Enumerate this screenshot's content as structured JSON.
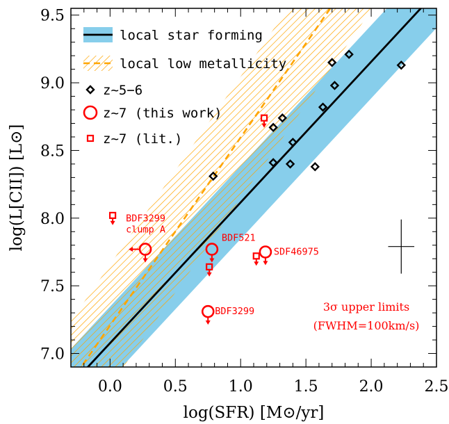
{
  "chart_data": {
    "type": "scatter",
    "xlabel": "log(SFR) [M⊙/yr]",
    "ylabel": "log(L[CII]) [L⊙]",
    "xlim": [
      -0.3,
      2.5
    ],
    "ylim": [
      6.9,
      9.55
    ],
    "xticks": [
      0.0,
      0.5,
      1.0,
      1.5,
      2.0,
      2.5
    ],
    "xtick_labels": [
      "0.0",
      "0.5",
      "1.0",
      "1.5",
      "2.0",
      "2.5"
    ],
    "yticks": [
      7.0,
      7.5,
      8.0,
      8.5,
      9.0,
      9.5
    ],
    "ytick_labels": [
      "7.0",
      "7.5",
      "8.0",
      "8.5",
      "9.0",
      "9.5"
    ],
    "grid": false,
    "legend_position": "top-left",
    "legend": [
      {
        "label": "local star forming",
        "marker": "band-line"
      },
      {
        "label": "local low metallicity",
        "marker": "hatch-dashed"
      },
      {
        "label": "z~5−6",
        "marker": "diamond"
      },
      {
        "label": "z~7 (this work)",
        "marker": "circle"
      },
      {
        "label": "z~7 (lit.)",
        "marker": "square"
      }
    ],
    "relations": {
      "local_star_forming": {
        "line": [
          [
            -0.3,
            6.765
          ],
          [
            2.5,
            9.675
          ]
        ],
        "band_halfwidth_y": 0.27,
        "color": "#87ceeb"
      },
      "local_low_metallicity": {
        "line": [
          [
            -0.3,
            6.79
          ],
          [
            2.5,
            10.68
          ]
        ],
        "band_halfwidth_y": 0.45,
        "color": "#ffa500"
      }
    },
    "series": [
      {
        "name": "z~5−6",
        "marker": "diamond",
        "color": "#000000",
        "points": [
          [
            0.79,
            8.31
          ],
          [
            1.25,
            8.67
          ],
          [
            1.32,
            8.74
          ],
          [
            1.25,
            8.41
          ],
          [
            1.38,
            8.4
          ],
          [
            1.4,
            8.56
          ],
          [
            1.63,
            8.82
          ],
          [
            1.57,
            8.38
          ],
          [
            1.7,
            9.15
          ],
          [
            1.72,
            8.98
          ],
          [
            1.83,
            9.21
          ],
          [
            2.23,
            9.13
          ]
        ]
      },
      {
        "name": "z~7 (this work)",
        "marker": "circle",
        "color": "#ff0000",
        "upper_limit": true,
        "points": [
          {
            "x": 0.27,
            "y": 7.77,
            "label": "BDF3299\nclump A",
            "sfr_upper": true
          },
          {
            "x": 0.78,
            "y": 7.77,
            "label": "BDF521"
          },
          {
            "x": 1.19,
            "y": 7.75,
            "label": "SDF46975"
          },
          {
            "x": 0.75,
            "y": 7.31,
            "label": "BDF3299"
          }
        ]
      },
      {
        "name": "z~7 (lit.)",
        "marker": "square",
        "color": "#ff0000",
        "upper_limit": true,
        "points": [
          [
            0.02,
            8.02
          ],
          [
            1.18,
            8.74
          ],
          [
            0.76,
            7.64
          ],
          [
            1.12,
            7.72
          ]
        ]
      }
    ],
    "error_bar": {
      "x": 2.23,
      "y": 7.79,
      "xerr": 0.1,
      "yerr": 0.2
    },
    "annotations": [
      "3σ upper limits",
      "(FWHM=100km/s)"
    ]
  }
}
